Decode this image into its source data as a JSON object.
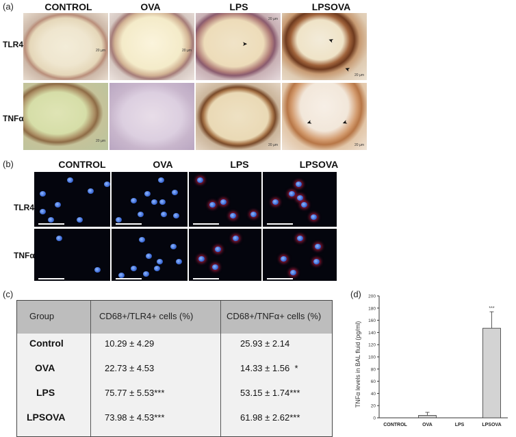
{
  "panel_a": {
    "label": "(a)",
    "columns": [
      "CONTROL",
      "OVA",
      "LPS",
      "LPSOVA"
    ],
    "rows": [
      "TLR4",
      "TNFα"
    ],
    "scale_text": "20 µm"
  },
  "panel_b": {
    "label": "(b)",
    "columns": [
      "CONTROL",
      "OVA",
      "LPS",
      "LPSOVA"
    ],
    "rows": [
      "TLR4",
      "TNFα"
    ]
  },
  "panel_c": {
    "label": "(c)",
    "headers": [
      "Group",
      "CD68+/TLR4+ cells (%)",
      "CD68+/TNFα+ cells (%)"
    ],
    "rows": [
      {
        "group": "Control",
        "tlr4": "10.29 ± 4.29",
        "tlr4_sig": "",
        "tnf": "25.93 ± 2.14",
        "tnf_sig": ""
      },
      {
        "group": "OVA",
        "tlr4": "22.73 ± 4.53",
        "tlr4_sig": "",
        "tnf": "14.33 ± 1.56",
        "tnf_sig": "*"
      },
      {
        "group": "LPS",
        "tlr4": "75.77 ± 5.53",
        "tlr4_sig": "***",
        "tnf": "53.15 ± 1.74",
        "tnf_sig": "***"
      },
      {
        "group": "LPSOVA",
        "tlr4": "73.98 ± 4.53",
        "tlr4_sig": "***",
        "tnf": "61.98 ± 2.62",
        "tnf_sig": "***"
      }
    ]
  },
  "panel_d": {
    "label": "(d)"
  },
  "chart_data": {
    "type": "bar",
    "categories": [
      "CONTROL",
      "OVA",
      "LPS",
      "LPSOVA"
    ],
    "values": [
      0,
      4,
      0,
      147
    ],
    "errors": [
      0,
      5,
      0,
      27
    ],
    "significance": [
      "",
      "",
      "",
      "***"
    ],
    "ylabel": "TNFα levels in BAL fluid (pg/ml)",
    "ylim": [
      0,
      200
    ],
    "yticks": [
      0,
      20,
      40,
      60,
      80,
      100,
      120,
      140,
      160,
      180,
      200
    ],
    "bar_color": "#d3d3d3"
  }
}
